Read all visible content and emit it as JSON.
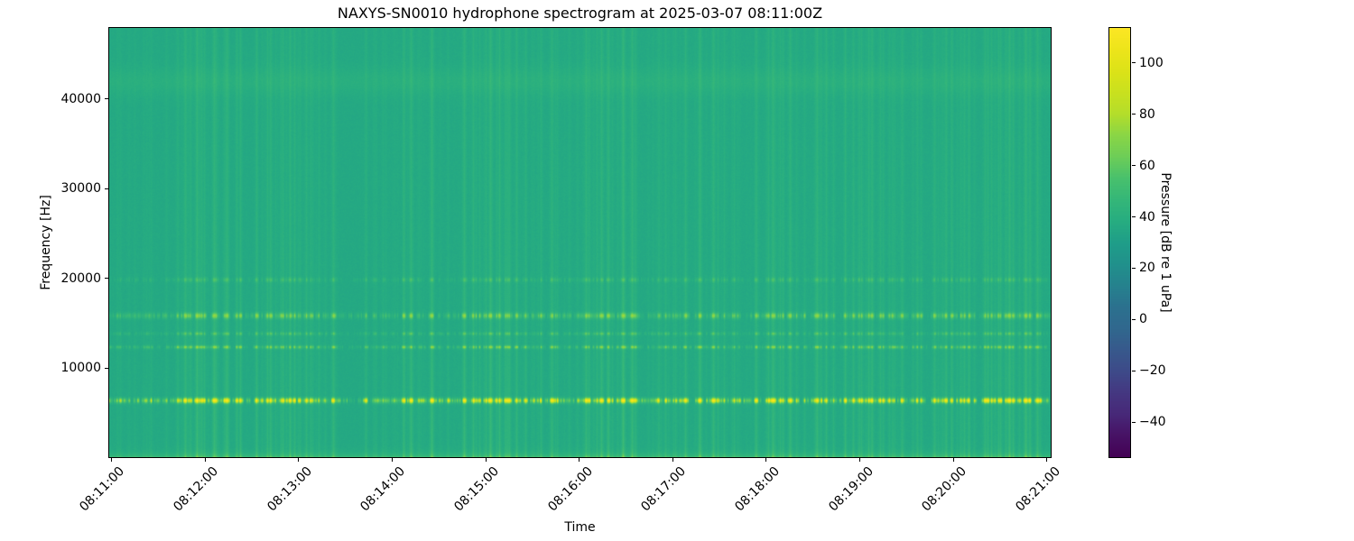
{
  "chart_data": {
    "type": "heatmap",
    "subtype": "spectrogram",
    "title": "NAXYS-SN0010 hydrophone spectrogram at 2025-03-07 08:11:00Z",
    "xlabel": "Time",
    "ylabel": "Frequency [Hz]",
    "x_tick_labels": [
      "08:11:00",
      "08:12:00",
      "08:13:00",
      "08:14:00",
      "08:15:00",
      "08:16:00",
      "08:17:00",
      "08:18:00",
      "08:19:00",
      "08:20:00",
      "08:21:00"
    ],
    "x_window": {
      "start_label": "08:11:00",
      "start_offset_s": -2,
      "duration_s": 605,
      "tick_interval_s": 60
    },
    "ylim_hz": [
      0,
      48000
    ],
    "y_ticks": [
      {
        "value": 10000,
        "label": "10000"
      },
      {
        "value": 20000,
        "label": "20000"
      },
      {
        "value": 30000,
        "label": "30000"
      },
      {
        "value": 40000,
        "label": "40000"
      }
    ],
    "colorbar": {
      "label": "Pressure [dB re 1 uPa]",
      "colormap": "viridis",
      "clim_db": [
        -54,
        114
      ],
      "ticks": [
        {
          "value": 100,
          "label": "100"
        },
        {
          "value": 80,
          "label": "80"
        },
        {
          "value": 60,
          "label": "60"
        },
        {
          "value": 40,
          "label": "40"
        },
        {
          "value": 20,
          "label": "20"
        },
        {
          "value": 0,
          "label": "0"
        },
        {
          "value": -20,
          "label": "−20"
        },
        {
          "value": -40,
          "label": "−40"
        }
      ]
    },
    "texture": {
      "background_level_db": 36,
      "pixel_noise_db": 1.3,
      "low_frequency_band": {
        "decay_hz": 350,
        "boost_db": 24
      },
      "smooth_band": {
        "center_hz": 42000,
        "half_width_hz": 1500,
        "boost_db": 4
      },
      "tonal_bands": [
        {
          "center_hz": 6450,
          "half_width_hz": 280,
          "max_boost_db": 68,
          "density": 1.0
        },
        {
          "center_hz": 12400,
          "half_width_hz": 180,
          "max_boost_db": 30,
          "density": 0.8
        },
        {
          "center_hz": 13900,
          "half_width_hz": 180,
          "max_boost_db": 18,
          "density": 0.7
        },
        {
          "center_hz": 15900,
          "half_width_hz": 320,
          "max_boost_db": 30,
          "density": 0.85
        },
        {
          "center_hz": 19900,
          "half_width_hz": 250,
          "max_boost_db": 14,
          "density": 0.5
        }
      ],
      "broadband_streaks": {
        "seed": 20250307,
        "quiet_fraction": 0.55,
        "max_boost_db": 14
      }
    },
    "events": [
      {
        "time": "08:11:47",
        "strength": 0.7
      },
      {
        "time": "08:11:55",
        "strength": 0.9
      },
      {
        "time": "08:12:06",
        "strength": 0.85
      },
      {
        "time": "08:12:13",
        "strength": 0.6
      },
      {
        "time": "08:13:22",
        "strength": 0.65
      },
      {
        "time": "08:14:12",
        "strength": 0.75
      },
      {
        "time": "08:14:25",
        "strength": 0.85
      },
      {
        "time": "08:14:46",
        "strength": 0.8
      },
      {
        "time": "08:15:03",
        "strength": 0.9
      },
      {
        "time": "08:15:13",
        "strength": 0.6
      },
      {
        "time": "08:15:42",
        "strength": 0.65
      },
      {
        "time": "08:16:04",
        "strength": 0.7
      },
      {
        "time": "08:16:14",
        "strength": 0.75
      },
      {
        "time": "08:16:28",
        "strength": 1.0
      },
      {
        "time": "08:16:34",
        "strength": 0.8
      },
      {
        "time": "08:17:17",
        "strength": 0.85
      },
      {
        "time": "08:17:26",
        "strength": 0.7
      },
      {
        "time": "08:18:04",
        "strength": 0.8
      },
      {
        "time": "08:18:15",
        "strength": 0.7
      },
      {
        "time": "08:18:32",
        "strength": 0.6
      },
      {
        "time": "08:19:27",
        "strength": 0.5
      },
      {
        "time": "08:19:48",
        "strength": 0.55
      },
      {
        "time": "08:20:20",
        "strength": 0.6
      },
      {
        "time": "08:20:36",
        "strength": 0.85
      },
      {
        "time": "08:20:46",
        "strength": 0.9
      },
      {
        "time": "08:20:54",
        "strength": 0.7
      }
    ]
  }
}
